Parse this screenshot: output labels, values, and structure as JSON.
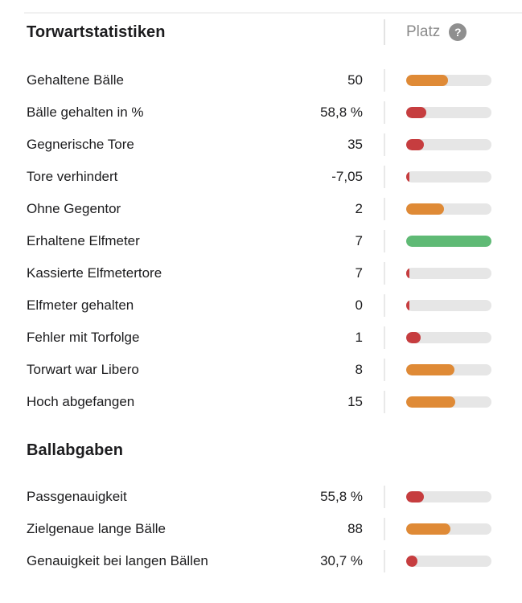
{
  "platz": {
    "label": "Platz",
    "help_glyph": "?"
  },
  "colors": {
    "orange": "#df8a36",
    "red": "#c63d3f",
    "green": "#5fba75",
    "track": "#e6e6e6"
  },
  "sections": [
    {
      "title": "Torwartstatistiken",
      "rows": [
        {
          "label": "Gehaltene Bälle",
          "value": "50",
          "level": "orange",
          "percent": 49
        },
        {
          "label": "Bälle gehalten in %",
          "value": "58,8 %",
          "level": "red",
          "percent": 24
        },
        {
          "label": "Gegnerische Tore",
          "value": "35",
          "level": "red",
          "percent": 21
        },
        {
          "label": "Tore verhindert",
          "value": "-7,05",
          "level": "red",
          "percent": 4
        },
        {
          "label": "Ohne Gegentor",
          "value": "2",
          "level": "orange",
          "percent": 44
        },
        {
          "label": "Erhaltene Elfmeter",
          "value": "7",
          "level": "green",
          "percent": 100
        },
        {
          "label": "Kassierte Elfmetertore",
          "value": "7",
          "level": "red",
          "percent": 4
        },
        {
          "label": "Elfmeter gehalten",
          "value": "0",
          "level": "red",
          "percent": 4
        },
        {
          "label": "Fehler mit Torfolge",
          "value": "1",
          "level": "red",
          "percent": 17
        },
        {
          "label": "Torwart war Libero",
          "value": "8",
          "level": "orange",
          "percent": 57
        },
        {
          "label": "Hoch abgefangen",
          "value": "15",
          "level": "orange",
          "percent": 58
        }
      ]
    },
    {
      "title": "Ballabgaben",
      "rows": [
        {
          "label": "Passgenauigkeit",
          "value": "55,8 %",
          "level": "red",
          "percent": 21
        },
        {
          "label": "Zielgenaue lange Bälle",
          "value": "88",
          "level": "orange",
          "percent": 52
        },
        {
          "label": "Genauigkeit bei langen Bällen",
          "value": "30,7 %",
          "level": "red",
          "percent": 13
        }
      ]
    }
  ]
}
